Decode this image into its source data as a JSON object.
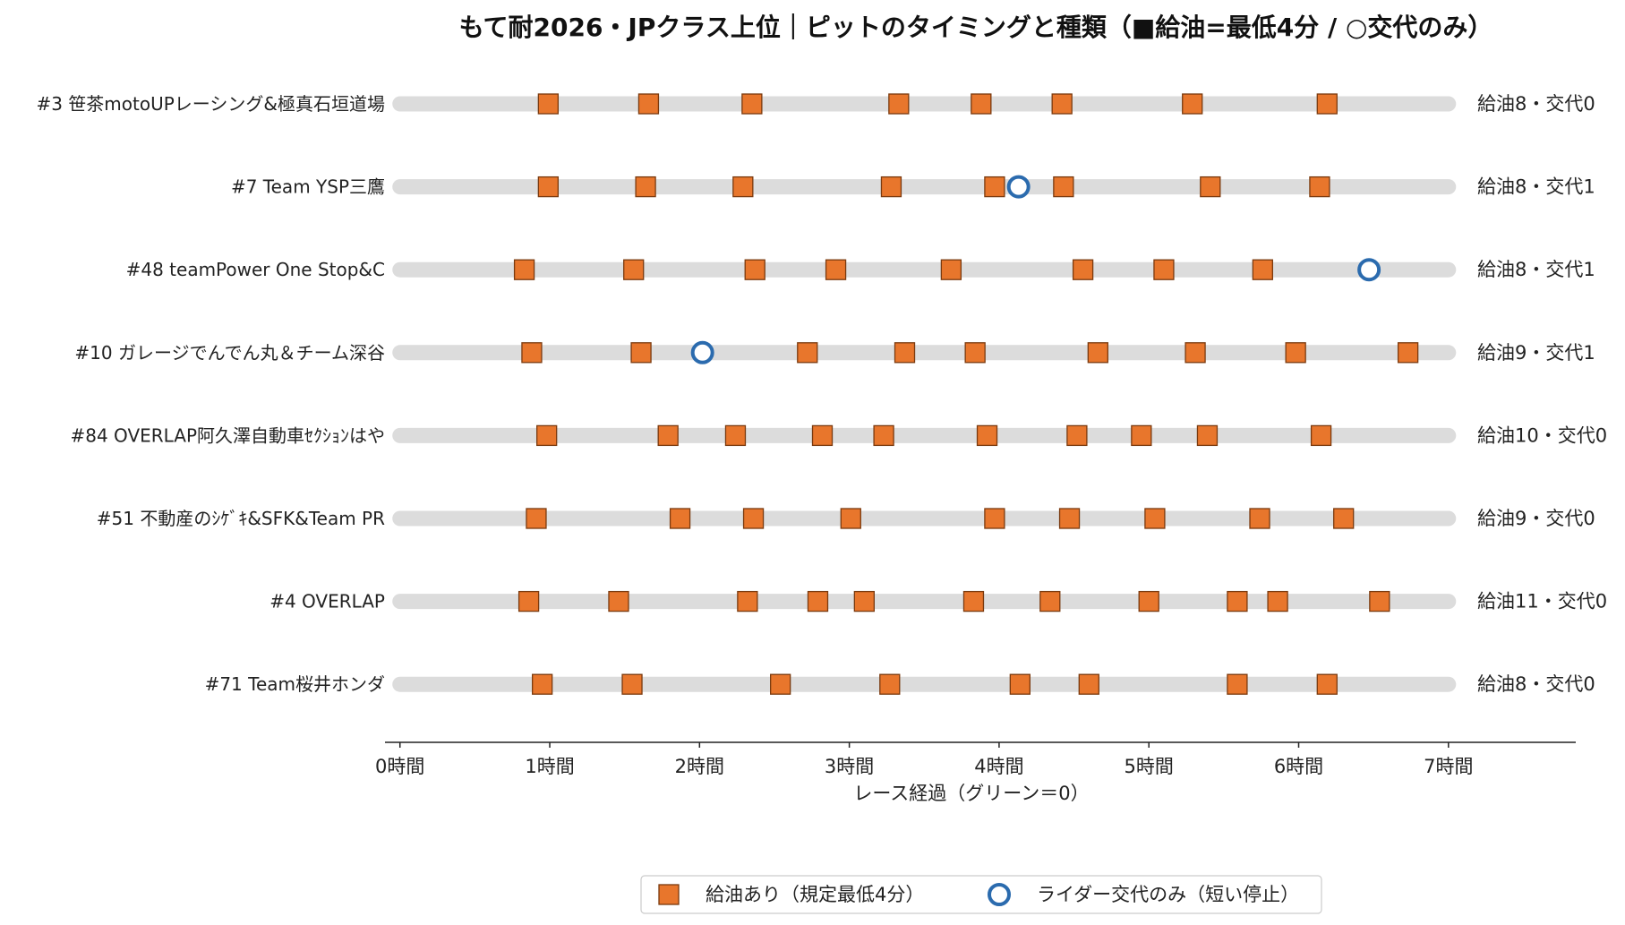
{
  "chart_data": {
    "type": "scatter",
    "title": "もて耐2026・JPクラス上位｜ピットのタイミングと種類（■給油=最低4分 / ○交代のみ）",
    "xlabel": "レース経過（グリーン＝0）",
    "xlim": [
      -0.1,
      7.85
    ],
    "xticks": [
      0,
      1,
      2,
      3,
      4,
      5,
      6,
      7
    ],
    "xtick_labels": [
      "0時間",
      "1時間",
      "2時間",
      "3時間",
      "4時間",
      "5時間",
      "6時間",
      "7時間"
    ],
    "track_range": [
      0,
      7
    ],
    "grid": false,
    "legend_position": "bottom-center",
    "colors": {
      "refuel": "#E8762C",
      "refuel_edge": "#7A3A0F",
      "change": "#2B6BAE",
      "track": "#DCDCDC"
    },
    "legend": [
      {
        "key": "refuel",
        "label": "給油あり（規定最低4分）"
      },
      {
        "key": "change",
        "label": "ライダー交代のみ（短い停止）"
      }
    ],
    "rows": [
      {
        "team": "#3 笹茶motoUPレーシング&極真石垣道場",
        "summary": "給油8・交代0",
        "refuel": [
          0.99,
          1.66,
          2.35,
          3.33,
          3.88,
          4.42,
          5.29,
          6.19
        ],
        "change": []
      },
      {
        "team": "#7 Team YSP三鷹",
        "summary": "給油8・交代1",
        "refuel": [
          0.99,
          1.64,
          2.29,
          3.28,
          3.97,
          4.43,
          5.41,
          6.14
        ],
        "change": [
          4.13
        ]
      },
      {
        "team": "#48 teamPower One Stop&C",
        "summary": "給油8・交代1",
        "refuel": [
          0.83,
          1.56,
          2.37,
          2.91,
          3.68,
          4.56,
          5.1,
          5.76
        ],
        "change": [
          6.47
        ]
      },
      {
        "team": "#10 ガレージでんでん丸＆チーム深谷",
        "summary": "給油9・交代1",
        "refuel": [
          0.88,
          1.61,
          2.72,
          3.37,
          3.84,
          4.66,
          5.31,
          5.98,
          6.73
        ],
        "change": [
          2.02
        ]
      },
      {
        "team": "#84 OVERLAP阿久澤自動車ｾｸｼｮﾝはや",
        "summary": "給油10・交代0",
        "refuel": [
          0.98,
          1.79,
          2.24,
          2.82,
          3.23,
          3.92,
          4.52,
          4.95,
          5.39,
          6.15
        ],
        "change": []
      },
      {
        "team": "#51 不動産のｼｹﾞｷ&SFK&Team PR",
        "summary": "給油9・交代0",
        "refuel": [
          0.91,
          1.87,
          2.36,
          3.01,
          3.97,
          4.47,
          5.04,
          5.74,
          6.3
        ],
        "change": []
      },
      {
        "team": "#4 OVERLAP",
        "summary": "給油11・交代0",
        "refuel": [
          0.86,
          1.46,
          2.32,
          2.79,
          3.1,
          3.83,
          4.34,
          5.0,
          5.59,
          5.86,
          6.54
        ],
        "change": []
      },
      {
        "team": "#71 Team桜井ホンダ",
        "summary": "給油8・交代0",
        "refuel": [
          0.95,
          1.55,
          2.54,
          3.27,
          4.14,
          4.6,
          5.59,
          6.19
        ],
        "change": []
      }
    ]
  }
}
